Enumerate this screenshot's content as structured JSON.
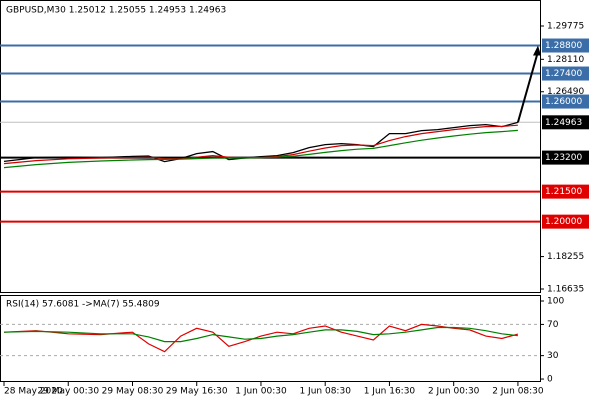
{
  "chart_data": [
    {
      "type": "line",
      "title": "GBPUSD,M30  1.25012 1.25055 1.24953 1.24963",
      "x": [
        0,
        8,
        16,
        24,
        32,
        36,
        40,
        44,
        48,
        52,
        56,
        60,
        64,
        68,
        72,
        76,
        80,
        84,
        88,
        92,
        96,
        100,
        104,
        108,
        112,
        116,
        120,
        124,
        128
      ],
      "series": [
        {
          "color": "#000000",
          "values": [
            1.2301,
            1.232,
            1.2322,
            1.232,
            1.2326,
            1.2328,
            1.23,
            1.2315,
            1.234,
            1.235,
            1.231,
            1.2318,
            1.2325,
            1.233,
            1.2345,
            1.237,
            1.2385,
            1.239,
            1.2385,
            1.2375,
            1.244,
            1.244,
            1.2455,
            1.246,
            1.247,
            1.248,
            1.2485,
            1.2475,
            1.2496
          ]
        },
        {
          "color": "#d00000",
          "values": [
            1.229,
            1.2305,
            1.2314,
            1.2318,
            1.232,
            1.2322,
            1.2315,
            1.2314,
            1.2322,
            1.233,
            1.2322,
            1.2318,
            1.232,
            1.2325,
            1.2335,
            1.2352,
            1.2368,
            1.238,
            1.2383,
            1.238,
            1.2405,
            1.2425,
            1.244,
            1.245,
            1.246,
            1.2468,
            1.2475,
            1.2476,
            1.2482
          ]
        },
        {
          "color": "#008000",
          "values": [
            1.227,
            1.2285,
            1.2296,
            1.2303,
            1.2308,
            1.231,
            1.2311,
            1.2312,
            1.2315,
            1.2318,
            1.2318,
            1.2318,
            1.232,
            1.2322,
            1.2327,
            1.2336,
            1.2346,
            1.2355,
            1.2362,
            1.2366,
            1.238,
            1.2394,
            1.2407,
            1.2418,
            1.2428,
            1.2437,
            1.2445,
            1.245,
            1.2456
          ]
        }
      ],
      "xlim": [
        -1,
        133.5
      ],
      "ylim": [
        1.16485,
        1.30974
      ],
      "yticks": [
        1.29775,
        {
          "value": 1.2811,
          "label": "1.28110"
        },
        {
          "value": 1.2649,
          "label": "1.26490"
        },
        1.18255,
        1.16635
      ],
      "levels": [
        {
          "value": 1.288,
          "label": "1.28800",
          "color": "#3b6ea8"
        },
        {
          "value": 1.274,
          "label": "1.27400",
          "color": "#3b6ea8"
        },
        {
          "value": 1.26,
          "label": "1.26000",
          "color": "#3b6ea8"
        },
        {
          "value": 1.232,
          "label": "1.23200",
          "color": "#000000"
        },
        {
          "value": 1.215,
          "label": "1.21500",
          "color": "#e00000"
        },
        {
          "value": 1.2,
          "label": "1.20000",
          "color": "#e00000"
        }
      ],
      "current": 1.24963
    },
    {
      "type": "line",
      "title": "RSI(14) 57.6081 ->MA(7) 55.4809",
      "x": [
        0,
        8,
        16,
        24,
        32,
        36,
        40,
        44,
        48,
        52,
        56,
        60,
        64,
        68,
        72,
        76,
        80,
        84,
        88,
        92,
        96,
        100,
        104,
        108,
        112,
        116,
        120,
        124,
        128
      ],
      "series": [
        {
          "color": "#e00000",
          "values": [
            60,
            62,
            58,
            57,
            60,
            45,
            35,
            55,
            65,
            60,
            42,
            48,
            55,
            60,
            58,
            65,
            68,
            60,
            55,
            50,
            68,
            62,
            70,
            68,
            65,
            63,
            55,
            52,
            57.6081
          ]
        },
        {
          "color": "#008000",
          "values": [
            60,
            61,
            60,
            58,
            58,
            54,
            48,
            48,
            52,
            57,
            54,
            51,
            52,
            55,
            57,
            60,
            63,
            63,
            61,
            57,
            58,
            60,
            63,
            66,
            66,
            65,
            62,
            58,
            55.4809
          ]
        }
      ],
      "xlim": [
        -1,
        133.5
      ],
      "ylim": [
        -3.8,
        107.7
      ],
      "yticks": [
        100,
        70,
        30,
        0
      ],
      "dashed_levels": [
        70,
        30
      ],
      "xticks": [
        {
          "value": 0,
          "label": "28 May 2020"
        },
        {
          "value": 16,
          "label": "29 May 00:30"
        },
        {
          "value": 32,
          "label": "29 May 08:30"
        },
        {
          "value": 48,
          "label": "29 May 16:30"
        },
        {
          "value": 64,
          "label": "1 Jun 00:30"
        },
        {
          "value": 80,
          "label": "1 Jun 08:30"
        },
        {
          "value": 96,
          "label": "1 Jun 16:30"
        },
        {
          "value": 112,
          "label": "2 Jun 00:30"
        },
        {
          "value": 128,
          "label": "2 Jun 08:30"
        }
      ]
    }
  ]
}
